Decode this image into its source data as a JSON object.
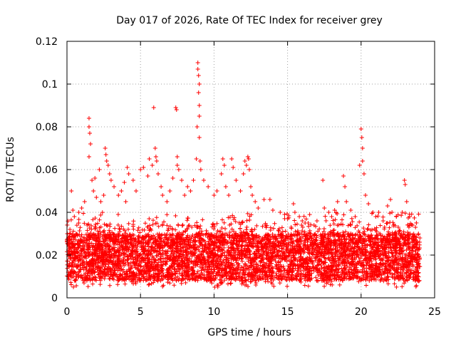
{
  "chart_data": {
    "type": "scatter",
    "title": "Day 017 of 2026, Rate Of TEC Index for receiver grey",
    "xlabel": "GPS time / hours",
    "ylabel": "ROTI / TECUs",
    "xlim": [
      0,
      25
    ],
    "ylim": [
      0,
      0.12
    ],
    "xticks": [
      0,
      5,
      10,
      15,
      20,
      25
    ],
    "xtick_labels": [
      "0",
      "5",
      "10",
      "15",
      "20",
      "25"
    ],
    "yticks": [
      0,
      0.02,
      0.04,
      0.06,
      0.08,
      0.1,
      0.12
    ],
    "ytick_labels": [
      "0",
      "0.02",
      "0.04",
      "0.06",
      "0.08",
      "0.1",
      "0.12"
    ],
    "grid": true,
    "legend": "none",
    "marker": "plus",
    "color": "#ff0000",
    "series": [
      {
        "description": "Dense cluster of ROTI points from 0 to 24 h, bulk roughly 0.008-0.03 TECU with scattered spikes",
        "points": [
          [
            0.1,
            0.025
          ],
          [
            0.2,
            0.032
          ],
          [
            0.3,
            0.05
          ],
          [
            0.4,
            0.041
          ],
          [
            0.5,
            0.038
          ],
          [
            0.8,
            0.035
          ],
          [
            1.0,
            0.042
          ],
          [
            1.2,
            0.045
          ],
          [
            1.5,
            0.084
          ],
          [
            1.5,
            0.08
          ],
          [
            1.55,
            0.077
          ],
          [
            1.6,
            0.072
          ],
          [
            1.5,
            0.066
          ],
          [
            1.7,
            0.055
          ],
          [
            1.8,
            0.05
          ],
          [
            1.9,
            0.056
          ],
          [
            2.0,
            0.047
          ],
          [
            2.2,
            0.06
          ],
          [
            2.3,
            0.045
          ],
          [
            2.5,
            0.048
          ],
          [
            2.6,
            0.07
          ],
          [
            2.65,
            0.067
          ],
          [
            2.7,
            0.064
          ],
          [
            2.8,
            0.062
          ],
          [
            2.9,
            0.058
          ],
          [
            3.0,
            0.055
          ],
          [
            3.2,
            0.052
          ],
          [
            3.5,
            0.048
          ],
          [
            3.7,
            0.05
          ],
          [
            3.9,
            0.054
          ],
          [
            4.0,
            0.045
          ],
          [
            4.1,
            0.061
          ],
          [
            4.2,
            0.058
          ],
          [
            4.5,
            0.055
          ],
          [
            4.7,
            0.05
          ],
          [
            5.0,
            0.06
          ],
          [
            5.2,
            0.061
          ],
          [
            5.5,
            0.057
          ],
          [
            5.6,
            0.065
          ],
          [
            5.8,
            0.062
          ],
          [
            5.9,
            0.089
          ],
          [
            6.0,
            0.07
          ],
          [
            6.05,
            0.066
          ],
          [
            6.1,
            0.064
          ],
          [
            6.2,
            0.058
          ],
          [
            6.4,
            0.052
          ],
          [
            6.5,
            0.048
          ],
          [
            6.8,
            0.045
          ],
          [
            7.0,
            0.05
          ],
          [
            7.2,
            0.056
          ],
          [
            7.4,
            0.089
          ],
          [
            7.45,
            0.088
          ],
          [
            7.5,
            0.066
          ],
          [
            7.5,
            0.062
          ],
          [
            7.6,
            0.06
          ],
          [
            7.8,
            0.055
          ],
          [
            8.0,
            0.048
          ],
          [
            8.2,
            0.052
          ],
          [
            8.4,
            0.05
          ],
          [
            8.6,
            0.055
          ],
          [
            8.8,
            0.065
          ],
          [
            8.85,
            0.08
          ],
          [
            8.9,
            0.11
          ],
          [
            8.9,
            0.107
          ],
          [
            8.95,
            0.104
          ],
          [
            9.0,
            0.1
          ],
          [
            8.95,
            0.096
          ],
          [
            9.0,
            0.09
          ],
          [
            9.0,
            0.085
          ],
          [
            9.0,
            0.075
          ],
          [
            9.05,
            0.064
          ],
          [
            9.1,
            0.06
          ],
          [
            9.3,
            0.055
          ],
          [
            9.6,
            0.052
          ],
          [
            10.0,
            0.048
          ],
          [
            10.2,
            0.05
          ],
          [
            10.5,
            0.058
          ],
          [
            10.6,
            0.065
          ],
          [
            10.7,
            0.062
          ],
          [
            10.8,
            0.052
          ],
          [
            11.0,
            0.048
          ],
          [
            11.2,
            0.065
          ],
          [
            11.3,
            0.061
          ],
          [
            11.5,
            0.055
          ],
          [
            11.8,
            0.05
          ],
          [
            12.0,
            0.058
          ],
          [
            12.1,
            0.064
          ],
          [
            12.2,
            0.062
          ],
          [
            12.3,
            0.066
          ],
          [
            12.35,
            0.065
          ],
          [
            12.4,
            0.06
          ],
          [
            12.5,
            0.052
          ],
          [
            12.6,
            0.048
          ],
          [
            12.8,
            0.045
          ],
          [
            13.0,
            0.042
          ],
          [
            13.4,
            0.046
          ],
          [
            13.8,
            0.046
          ],
          [
            14.0,
            0.041
          ],
          [
            14.5,
            0.04
          ],
          [
            14.8,
            0.039
          ],
          [
            15.0,
            0.037
          ],
          [
            15.4,
            0.044
          ],
          [
            15.5,
            0.04
          ],
          [
            15.8,
            0.038
          ],
          [
            16.0,
            0.036
          ],
          [
            16.4,
            0.035
          ],
          [
            16.8,
            0.034
          ],
          [
            17.0,
            0.036
          ],
          [
            17.4,
            0.055
          ],
          [
            17.5,
            0.042
          ],
          [
            17.8,
            0.04
          ],
          [
            18.0,
            0.038
          ],
          [
            18.2,
            0.041
          ],
          [
            18.4,
            0.045
          ],
          [
            18.8,
            0.057
          ],
          [
            18.9,
            0.052
          ],
          [
            19.0,
            0.045
          ],
          [
            19.3,
            0.041
          ],
          [
            19.6,
            0.038
          ],
          [
            19.9,
            0.062
          ],
          [
            20.0,
            0.079
          ],
          [
            20.05,
            0.075
          ],
          [
            20.1,
            0.07
          ],
          [
            20.1,
            0.064
          ],
          [
            20.2,
            0.058
          ],
          [
            20.3,
            0.048
          ],
          [
            20.5,
            0.044
          ],
          [
            20.8,
            0.04
          ],
          [
            21.0,
            0.038
          ],
          [
            21.2,
            0.04
          ],
          [
            21.5,
            0.036
          ],
          [
            21.8,
            0.043
          ],
          [
            22.0,
            0.046
          ],
          [
            22.1,
            0.04
          ],
          [
            22.4,
            0.038
          ],
          [
            22.8,
            0.04
          ],
          [
            22.95,
            0.055
          ],
          [
            23.0,
            0.053
          ],
          [
            23.1,
            0.045
          ],
          [
            23.3,
            0.038
          ],
          [
            23.5,
            0.034
          ],
          [
            23.7,
            0.033
          ],
          [
            23.9,
            0.03
          ],
          [
            24.0,
            0.028
          ]
        ]
      }
    ]
  }
}
